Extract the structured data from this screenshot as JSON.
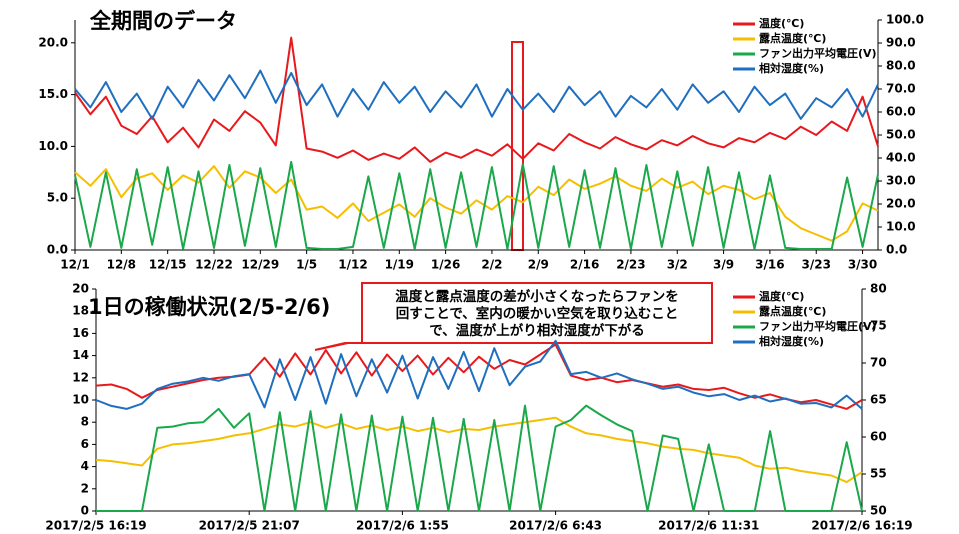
{
  "chart_data": [
    {
      "type": "line",
      "title": "全期間のデータ",
      "categories": [
        "12/1",
        null,
        null,
        "12/8",
        null,
        null,
        "12/15",
        null,
        null,
        "12/22",
        null,
        null,
        "12/29",
        null,
        null,
        "1/5",
        null,
        null,
        "1/12",
        null,
        null,
        "1/19",
        null,
        null,
        "1/26",
        null,
        null,
        "2/2",
        null,
        null,
        "2/9",
        null,
        null,
        "2/16",
        null,
        null,
        "2/23",
        null,
        null,
        "3/2",
        null,
        null,
        "3/9",
        null,
        null,
        "3/16",
        null,
        null,
        "3/23",
        null,
        null,
        "3/30",
        null
      ],
      "series": [
        {
          "name": "温度(℃)",
          "color": "#e8191c",
          "values": [
            15.2,
            13.1,
            14.8,
            12.0,
            11.2,
            12.9,
            10.4,
            11.8,
            9.9,
            12.6,
            11.5,
            13.4,
            12.3,
            10.1,
            20.5,
            9.8,
            9.5,
            8.9,
            9.6,
            8.7,
            9.3,
            8.8,
            9.9,
            8.5,
            9.4,
            8.9,
            9.7,
            9.1,
            10.2,
            8.8,
            10.3,
            9.6,
            11.2,
            10.4,
            9.8,
            10.9,
            10.2,
            9.7,
            10.6,
            10.1,
            11.0,
            10.3,
            9.9,
            10.8,
            10.4,
            11.3,
            10.7,
            11.9,
            11.1,
            12.4,
            11.5,
            14.8,
            10.0
          ]
        },
        {
          "name": "露点温度(℃)",
          "color": "#f5bf00",
          "values": [
            7.5,
            6.2,
            7.8,
            5.1,
            6.9,
            7.4,
            5.8,
            7.2,
            6.5,
            8.1,
            6.0,
            7.6,
            7.0,
            5.5,
            6.8,
            3.9,
            4.2,
            3.1,
            4.5,
            2.8,
            3.6,
            4.4,
            3.2,
            5.0,
            4.1,
            3.5,
            4.8,
            3.9,
            5.2,
            4.6,
            6.1,
            5.3,
            6.8,
            5.9,
            6.4,
            7.1,
            6.2,
            5.7,
            6.9,
            6.0,
            6.6,
            5.4,
            6.2,
            5.8,
            4.9,
            5.5,
            3.2,
            2.1,
            1.5,
            0.9,
            1.8,
            4.5,
            3.8
          ]
        },
        {
          "name": "ファン出力平均電圧(V)",
          "color": "#1aa84a",
          "values": [
            7.2,
            0.3,
            7.5,
            0.2,
            7.8,
            0.5,
            8.0,
            0.1,
            7.6,
            0.2,
            8.2,
            0.4,
            7.9,
            0.3,
            8.5,
            0.2,
            0.1,
            0.1,
            0.3,
            7.1,
            0.2,
            7.4,
            0.1,
            7.8,
            0.2,
            7.5,
            0.3,
            8.0,
            0.1,
            8.3,
            0.2,
            8.1,
            0.3,
            7.7,
            0.2,
            7.9,
            0.1,
            8.2,
            0.3,
            7.6,
            0.4,
            8.0,
            0.2,
            7.5,
            0.1,
            7.2,
            0.2,
            0.1,
            0.1,
            0.1,
            7.0,
            0.3,
            7.3
          ]
        },
        {
          "name": "相対湿度(%)",
          "color": "#1f6fc0",
          "axis": "y2",
          "values": [
            70,
            62,
            73,
            60,
            68,
            57,
            71,
            62,
            74,
            65,
            76,
            66,
            78,
            64,
            77,
            63,
            72,
            58,
            70,
            61,
            73,
            64,
            71,
            60,
            69,
            62,
            72,
            58,
            70,
            61,
            68,
            60,
            71,
            63,
            69,
            58,
            67,
            62,
            70,
            61,
            72,
            64,
            69,
            60,
            71,
            63,
            68,
            57,
            66,
            62,
            70,
            58,
            72
          ]
        }
      ],
      "ylim": [
        0,
        22.2
      ],
      "yticks": [
        {
          "value": 0,
          "label": "0.0"
        },
        {
          "value": 5,
          "label": "5.0"
        },
        {
          "value": 10,
          "label": "10.0"
        },
        {
          "value": 15,
          "label": "15.0"
        },
        {
          "value": 20,
          "label": "20.0"
        }
      ],
      "y2lim": [
        0,
        100
      ],
      "y2ticks": [
        {
          "value": 0,
          "label": "0.0"
        },
        {
          "value": 10,
          "label": "10.0"
        },
        {
          "value": 20,
          "label": "20.0"
        },
        {
          "value": 30,
          "label": "30.0"
        },
        {
          "value": 40,
          "label": "40.0"
        },
        {
          "value": 50,
          "label": "50.0"
        },
        {
          "value": 60,
          "label": "60.0"
        },
        {
          "value": 70,
          "label": "70.0"
        },
        {
          "value": 80,
          "label": "80.0"
        },
        {
          "value": 90,
          "label": "90.0"
        },
        {
          "value": 100,
          "label": "100.0"
        }
      ],
      "legend": "upper right"
    },
    {
      "type": "line",
      "title": "1日の稼働状況(2/5-2/6)",
      "categories": [
        "2017/2/5  16:19",
        null,
        null,
        null,
        null,
        null,
        null,
        null,
        null,
        null,
        "2017/2/5  21:07",
        null,
        null,
        null,
        null,
        null,
        null,
        null,
        null,
        null,
        "2017/2/6  1:55",
        null,
        null,
        null,
        null,
        null,
        null,
        null,
        null,
        null,
        "2017/2/6  6:43",
        null,
        null,
        null,
        null,
        null,
        null,
        null,
        null,
        null,
        "2017/2/6  11:31",
        null,
        null,
        null,
        null,
        null,
        null,
        null,
        null,
        null,
        "2017/2/6  16:19"
      ],
      "series": [
        {
          "name": "温度(℃)",
          "color": "#e8191c",
          "values": [
            11.3,
            11.4,
            11.0,
            10.2,
            10.9,
            11.2,
            11.5,
            11.8,
            12.0,
            12.1,
            12.3,
            13.8,
            12.1,
            14.2,
            12.3,
            14.5,
            12.4,
            14.3,
            12.2,
            14.1,
            12.6,
            14.0,
            12.3,
            13.8,
            12.5,
            13.9,
            12.8,
            13.6,
            13.2,
            14.1,
            15.0,
            12.2,
            11.8,
            12.0,
            11.6,
            11.8,
            11.5,
            11.2,
            11.4,
            11.0,
            10.9,
            11.1,
            10.6,
            10.2,
            10.5,
            10.1,
            9.8,
            10.0,
            9.6,
            9.2,
            10.0
          ]
        },
        {
          "name": "露点温度(℃)",
          "color": "#f5bf00",
          "values": [
            4.6,
            4.5,
            4.3,
            4.1,
            5.6,
            6.0,
            6.1,
            6.3,
            6.5,
            6.8,
            7.0,
            7.4,
            7.8,
            7.6,
            8.0,
            7.5,
            7.9,
            7.4,
            7.7,
            7.3,
            7.6,
            7.2,
            7.5,
            7.1,
            7.4,
            7.3,
            7.6,
            7.8,
            8.0,
            8.2,
            8.4,
            7.6,
            7.0,
            6.8,
            6.5,
            6.3,
            6.1,
            5.8,
            5.6,
            5.5,
            5.2,
            5.0,
            4.8,
            4.1,
            3.8,
            3.9,
            3.6,
            3.4,
            3.2,
            2.6,
            3.5
          ]
        },
        {
          "name": "ファン出力平均電圧(V)",
          "color": "#1aa84a",
          "values": [
            0,
            0,
            0,
            0,
            7.5,
            7.6,
            7.9,
            8.0,
            9.2,
            7.5,
            8.8,
            0,
            8.9,
            0,
            9.0,
            0,
            8.7,
            0,
            8.6,
            0,
            8.5,
            0,
            8.4,
            0,
            8.3,
            0,
            8.2,
            0,
            9.5,
            0,
            7.6,
            8.2,
            9.5,
            8.6,
            7.8,
            7.2,
            0,
            6.8,
            6.5,
            0,
            6.0,
            0,
            0,
            0,
            7.2,
            0,
            0,
            0,
            0,
            6.2,
            0
          ]
        },
        {
          "name": "相対湿度(%)",
          "color": "#1f6fc0",
          "axis": "y2",
          "values": [
            65.0,
            64.2,
            63.8,
            64.5,
            66.5,
            67.2,
            67.5,
            68.0,
            67.6,
            68.2,
            68.5,
            64.0,
            70.5,
            65.0,
            70.8,
            64.5,
            71.2,
            65.5,
            70.5,
            66.0,
            71.0,
            65.2,
            70.8,
            66.5,
            71.5,
            66.2,
            72.0,
            67.0,
            69.5,
            70.2,
            73.0,
            68.5,
            68.8,
            68.0,
            68.6,
            67.8,
            67.2,
            66.5,
            66.8,
            66.0,
            65.5,
            65.8,
            65.0,
            65.6,
            64.8,
            65.2,
            64.5,
            64.6,
            64.0,
            65.6,
            63.8
          ]
        }
      ],
      "ylim": [
        0,
        20
      ],
      "yticks": [
        0,
        2,
        4,
        6,
        8,
        10,
        12,
        14,
        16,
        18,
        20
      ],
      "y2lim": [
        50,
        80
      ],
      "y2ticks": [
        50,
        55,
        60,
        65,
        70,
        75,
        80
      ],
      "legend": "upper right",
      "annotation": [
        "温度と露点温度の差が小さくなったらファンを",
        "回すことで、室内の暖かい空気を取り込むこと",
        "で、温度が上がり相対湿度が下がる"
      ]
    }
  ]
}
